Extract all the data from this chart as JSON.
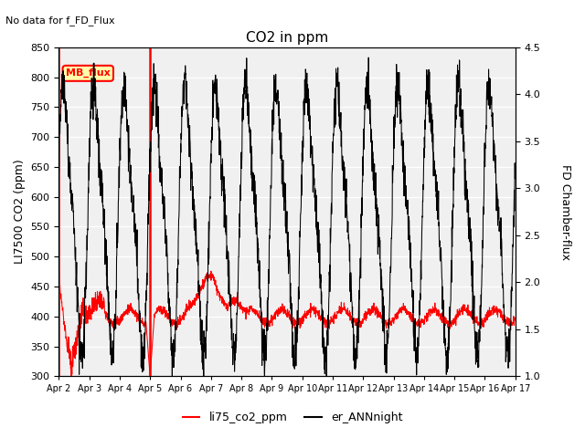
{
  "title": "CO2 in ppm",
  "ylabel_left": "LI7500 CO2 (ppm)",
  "ylabel_right": "FD Chamber-flux",
  "ylim_left": [
    300,
    850
  ],
  "ylim_right": [
    1.0,
    4.5
  ],
  "yticks_left": [
    300,
    350,
    400,
    450,
    500,
    550,
    600,
    650,
    700,
    750,
    800,
    850
  ],
  "yticks_right": [
    1.0,
    1.5,
    2.0,
    2.5,
    3.0,
    3.5,
    4.0,
    4.5
  ],
  "xtick_labels": [
    "Apr 2",
    "Apr 3",
    "Apr 4",
    "Apr 5",
    "Apr 6",
    "Apr 7",
    "Apr 8",
    "Apr 9",
    "Apr 10",
    "Apr 11",
    "Apr 12",
    "Apr 13",
    "Apr 14",
    "Apr 15",
    "Apr 16",
    "Apr 17"
  ],
  "no_data_text": "No data for f_FD_Flux",
  "mb_flux_label": "MB_flux",
  "legend_labels": [
    "li75_co2_ppm",
    "er_ANNnight"
  ],
  "vline_positions": [
    0.0,
    3.0
  ],
  "bg_color": "#f0f0f0",
  "plot_bg_color": "#ffffff"
}
